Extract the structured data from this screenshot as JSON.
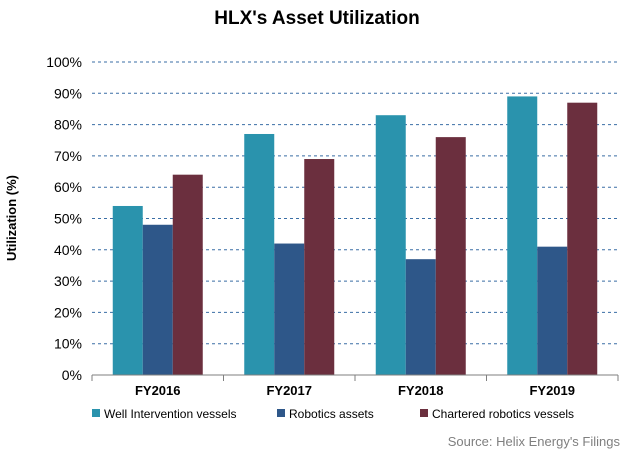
{
  "chart_data": {
    "type": "bar",
    "title": "HLX's Asset Utilization",
    "ylabel": "Utilization (%)",
    "xlabel": "",
    "categories": [
      "FY2016",
      "FY2017",
      "FY2018",
      "FY2019"
    ],
    "series": [
      {
        "name": "Well Intervention vessels",
        "color": "#2a93ad",
        "values": [
          54,
          77,
          83,
          89
        ]
      },
      {
        "name": "Robotics assets",
        "color": "#2e5789",
        "values": [
          48,
          42,
          37,
          41
        ]
      },
      {
        "name": "Chartered robotics vessels",
        "color": "#6b2f3e",
        "values": [
          64,
          69,
          76,
          87
        ]
      }
    ],
    "ylim": [
      0,
      100
    ],
    "yticks": [
      0,
      10,
      20,
      30,
      40,
      50,
      60,
      70,
      80,
      90,
      100
    ],
    "ytick_labels": [
      "0%",
      "10%",
      "20%",
      "30%",
      "40%",
      "50%",
      "60%",
      "70%",
      "80%",
      "90%",
      "100%"
    ],
    "grid": true,
    "legend_position": "bottom"
  },
  "source": "Source: Helix Energy's Filings",
  "colors": {
    "gridline": "#3a6ea5",
    "axis": "#7f7f7f"
  }
}
